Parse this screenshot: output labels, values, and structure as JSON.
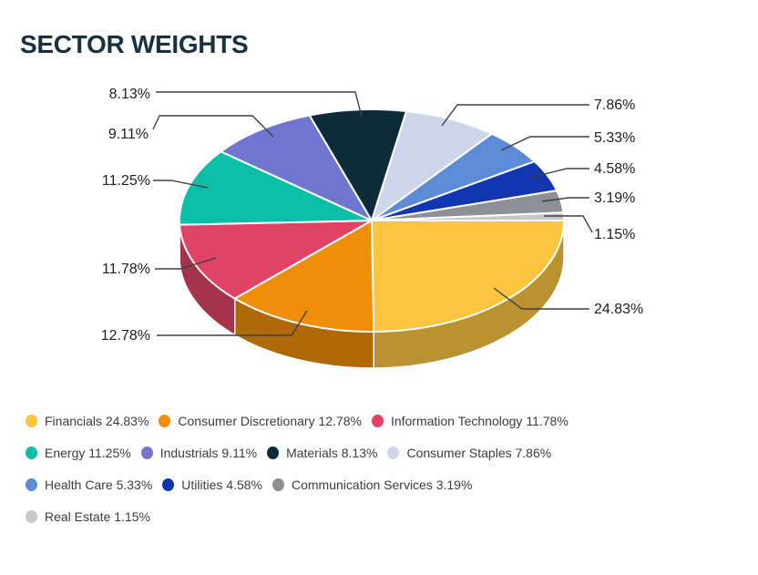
{
  "title": "SECTOR WEIGHTS",
  "chart_data": {
    "type": "pie",
    "style": "3d",
    "title": "SECTOR WEIGHTS",
    "unit": "%",
    "direction": "clockwise",
    "start_angle_deg": 0,
    "legend_position": "bottom",
    "categories": [
      "Financials",
      "Consumer Discretionary",
      "Information Technology",
      "Energy",
      "Industrials",
      "Materials",
      "Consumer Staples",
      "Health Care",
      "Utilities",
      "Communication Services",
      "Real Estate"
    ],
    "values": [
      24.83,
      12.78,
      11.78,
      11.25,
      9.11,
      8.13,
      7.86,
      5.33,
      4.58,
      3.19,
      1.15
    ],
    "labels": [
      "24.83%",
      "12.78%",
      "11.78%",
      "11.25%",
      "9.11%",
      "8.13%",
      "7.86%",
      "5.33%",
      "4.58%",
      "3.19%",
      "1.15%"
    ],
    "colors": [
      "#FBC53F",
      "#EF8E08",
      "#E04366",
      "#0BBEA8",
      "#7076CE",
      "#0E2B3A",
      "#CDD6EA",
      "#5E8BD5",
      "#1235B2",
      "#8D9096",
      "#C7C8CA"
    ]
  },
  "legend": {
    "items": [
      "Financials 24.83%",
      "Consumer Discretionary 12.78%",
      "Information Technology 11.78%",
      "Energy 11.25%",
      "Industrials 9.11%",
      "Materials 8.13%",
      "Consumer Staples 7.86%",
      "Health Care 5.33%",
      "Utilities 4.58%",
      "Communication Services 3.19%",
      "Real Estate 1.15%"
    ]
  },
  "style_colors": {
    "title": "#17313F",
    "label_text": "#1E1E1E",
    "leader_line": "#3F3F3F",
    "legend_text": "#3B3C43",
    "background": "#FFFFFF"
  }
}
